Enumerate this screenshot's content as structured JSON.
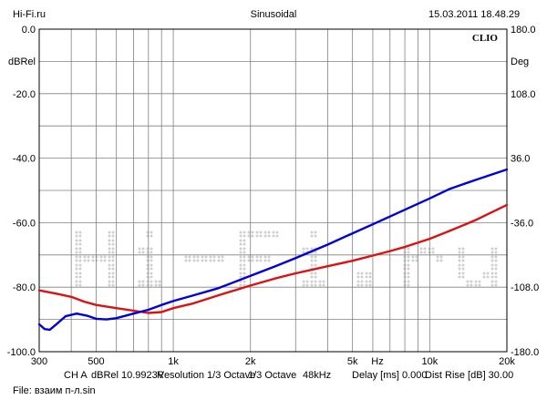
{
  "header": {
    "site": "Hi-Fi.ru",
    "mode": "Sinusoidal",
    "datetime": "15.03.2011 18.48.29"
  },
  "brand": "CLIO",
  "watermark_text": "Hi-Fi.ru",
  "footer": {
    "channel": "CH A",
    "dbrel": "dBRel 10.9923V",
    "resolution": "Resolution 1/3 Octave",
    "octave": "1/3 Octave",
    "rate": "48kHz",
    "delay": "Delay [ms] 0.000",
    "dist": "Dist Rise [dB] 30.00",
    "file": "File: взаим п-л.sin"
  },
  "colors": {
    "red_series": "#dd1111",
    "blue_series": "#0000dd",
    "grid": "#808080",
    "watermark": "#d0d0d0"
  },
  "chart_data": {
    "type": "line",
    "xlabel": "Hz",
    "x_scale": "log",
    "xlim": [
      300,
      20000
    ],
    "x_ticks": [
      {
        "value": 300,
        "label": "300"
      },
      {
        "value": 500,
        "label": "500"
      },
      {
        "value": 1000,
        "label": "1k"
      },
      {
        "value": 2000,
        "label": "2k"
      },
      {
        "value": 5000,
        "label": "5k"
      },
      {
        "value": 10000,
        "label": "10k"
      },
      {
        "value": 20000,
        "label": "20k"
      }
    ],
    "y_left": {
      "label": "dBRel",
      "ylim": [
        -100,
        0
      ],
      "ticks": [
        "0.0",
        "-20.0",
        "-40.0",
        "-60.0",
        "-80.0",
        "-100.0"
      ]
    },
    "y_right": {
      "label": "Deg",
      "ylim": [
        -180,
        180
      ],
      "ticks": [
        "180.0",
        "108.0",
        "36.0",
        "-36.0",
        "-108.0",
        "-180.0"
      ]
    },
    "grid": true,
    "series": [
      {
        "color": "red",
        "x": [
          300,
          350,
          400,
          450,
          500,
          600,
          700,
          800,
          900,
          1000,
          1200,
          1500,
          2000,
          2500,
          3000,
          4000,
          5000,
          6000,
          7000,
          8000,
          10000,
          12000,
          15000,
          20000
        ],
        "y": [
          -81,
          -82,
          -83,
          -84.5,
          -85.5,
          -86.5,
          -87.3,
          -88,
          -87.7,
          -86.5,
          -85,
          -82.5,
          -79.5,
          -77.3,
          -75.7,
          -73.5,
          -71.8,
          -70.2,
          -68.8,
          -67.5,
          -65,
          -62.5,
          -59.3,
          -54.5
        ]
      },
      {
        "color": "blue",
        "x": [
          300,
          315,
          330,
          350,
          380,
          420,
          460,
          500,
          550,
          600,
          700,
          800,
          900,
          1000,
          1200,
          1500,
          2000,
          2500,
          3000,
          4000,
          5000,
          6000,
          8000,
          10000,
          12000,
          15000,
          20000
        ],
        "y": [
          -91.5,
          -93,
          -93.2,
          -91.5,
          -89,
          -88.2,
          -88.8,
          -89.8,
          -90,
          -89.6,
          -88.2,
          -87,
          -85.5,
          -84.3,
          -82.5,
          -80.3,
          -76.5,
          -73.5,
          -71,
          -66.8,
          -63.3,
          -60.5,
          -56,
          -52.5,
          -49.5,
          -46.8,
          -43.5
        ]
      }
    ]
  }
}
